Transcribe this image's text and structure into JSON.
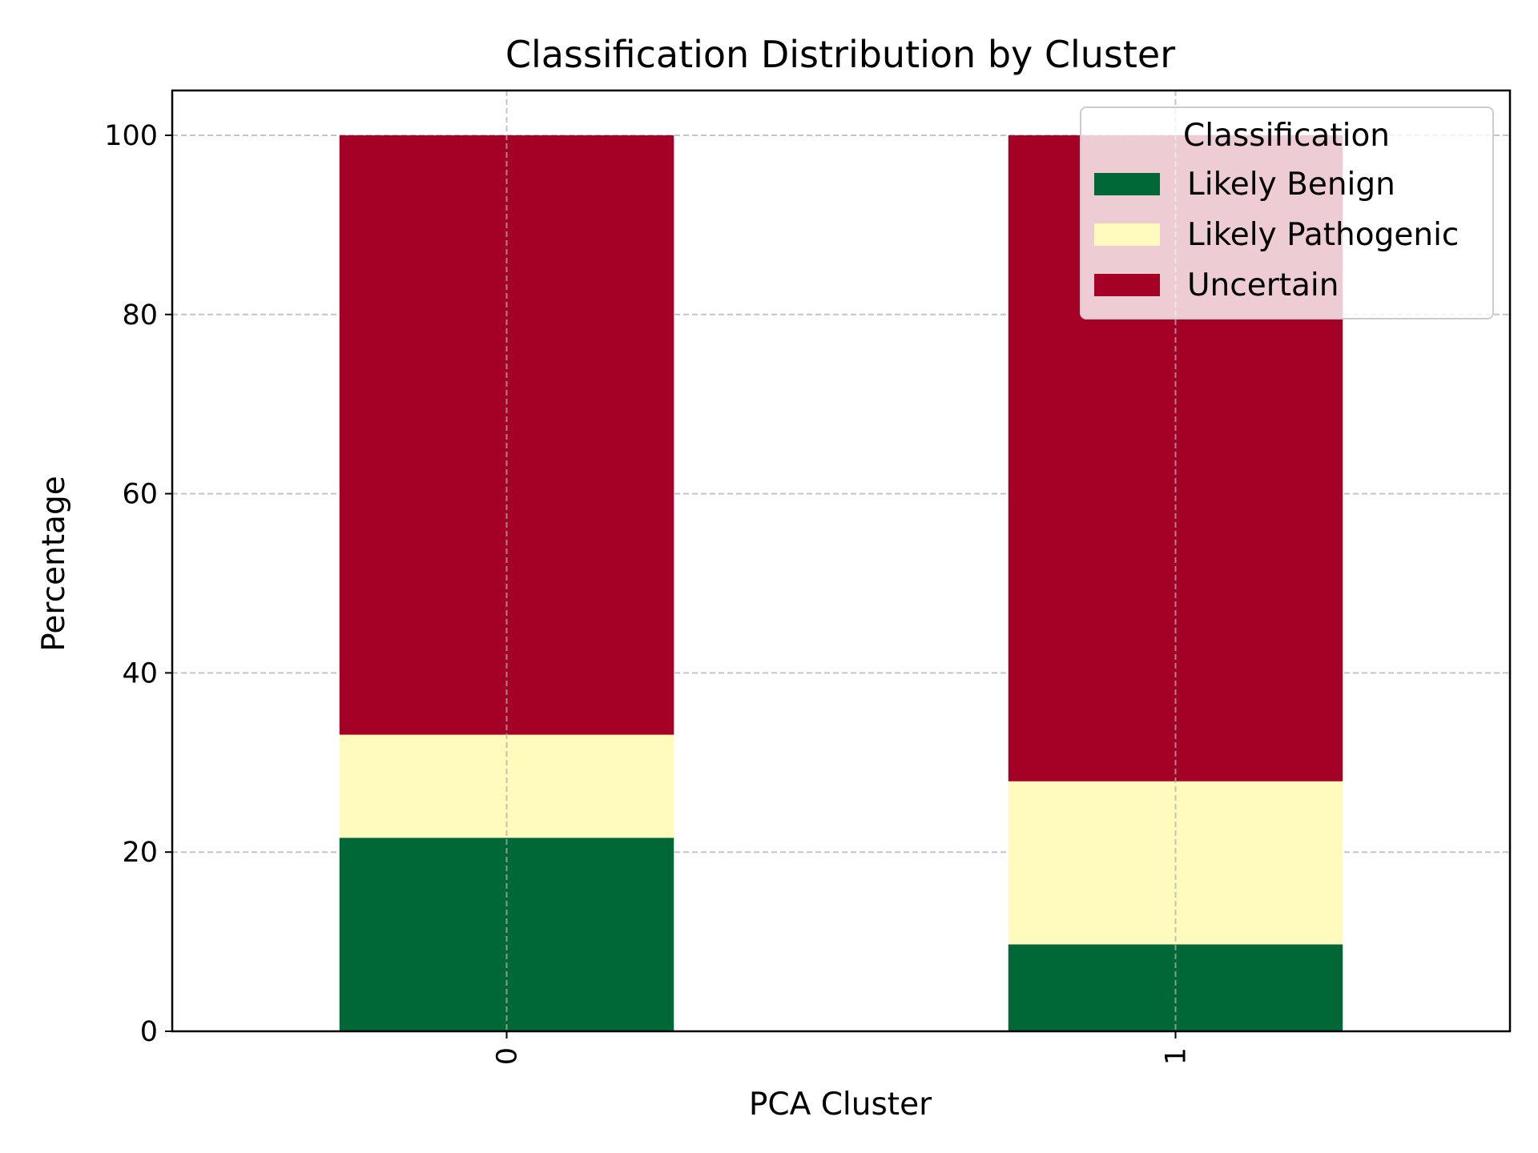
{
  "chart_data": {
    "type": "bar",
    "stacked": true,
    "title": "Classification Distribution by Cluster",
    "xlabel": "PCA Cluster",
    "ylabel": "Percentage",
    "categories": [
      "0",
      "1"
    ],
    "ylim": [
      0,
      105
    ],
    "yticks": [
      0,
      20,
      40,
      60,
      80,
      100
    ],
    "grid": true,
    "legend": {
      "title": "Classification",
      "placement": "top-right"
    },
    "series": [
      {
        "name": "Likely Benign",
        "color": "#006837",
        "values": [
          21.6,
          9.7
        ]
      },
      {
        "name": "Likely Pathogenic",
        "color": "#FEFBBD",
        "values": [
          11.5,
          18.2
        ]
      },
      {
        "name": "Uncertain",
        "color": "#A50026",
        "values": [
          66.9,
          72.1
        ]
      }
    ]
  }
}
